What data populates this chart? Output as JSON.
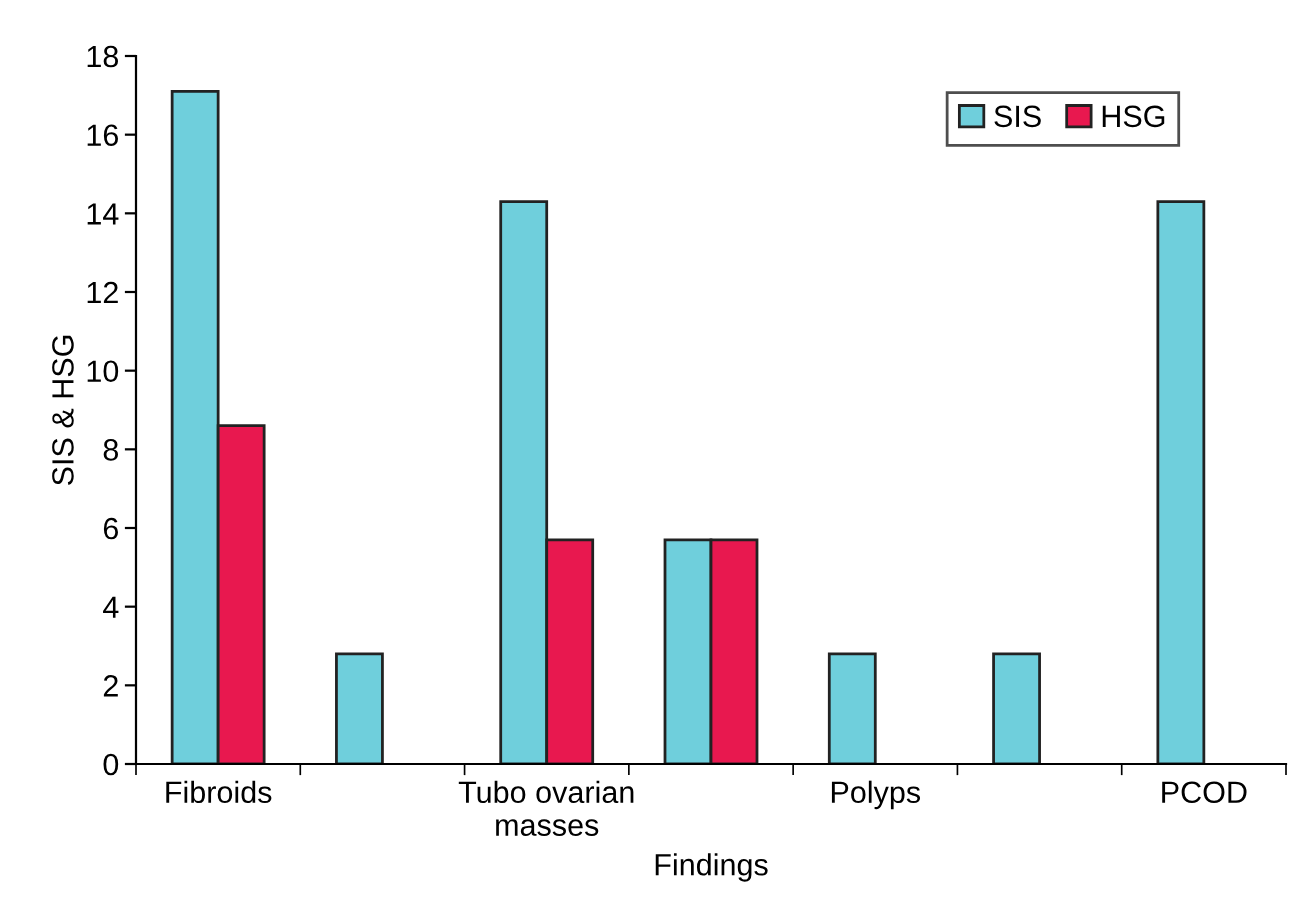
{
  "chart_data": {
    "type": "bar",
    "xlabel": "Findings",
    "ylabel": "SIS & HSG",
    "categories": [
      "Fibroids",
      null,
      "Tubo ovarian\nmasses",
      null,
      "Polyps",
      null,
      "PCOD"
    ],
    "series": [
      {
        "name": "SIS",
        "color": "#6fcfdc",
        "values": [
          17.1,
          2.8,
          14.3,
          5.7,
          2.8,
          2.8,
          14.3
        ]
      },
      {
        "name": "HSG",
        "color": "#e8184f",
        "values": [
          8.6,
          null,
          5.7,
          5.7,
          null,
          null,
          null
        ]
      }
    ],
    "ylim": [
      0,
      18
    ],
    "yticks": [
      0,
      2,
      4,
      6,
      8,
      10,
      12,
      14,
      16,
      18
    ],
    "grid": false,
    "legend": "top right"
  }
}
